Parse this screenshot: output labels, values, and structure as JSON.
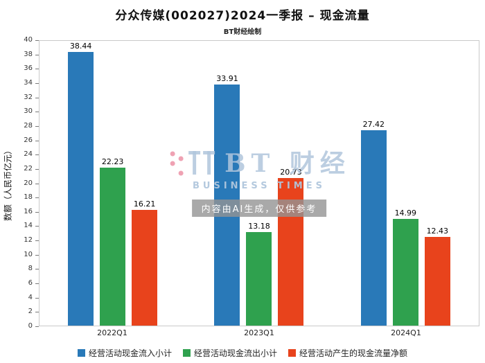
{
  "title": "分众传媒(002027)2024一季报 – 现金流量",
  "subtitle": "BT财经绘制",
  "chart_data": {
    "type": "bar",
    "categories": [
      "2022Q1",
      "2023Q1",
      "2024Q1"
    ],
    "series": [
      {
        "name": "经营活动现金流入小计",
        "color": "#2979b8",
        "values": [
          38.44,
          33.91,
          27.42
        ]
      },
      {
        "name": "经营活动现金流出小计",
        "color": "#2fa14e",
        "values": [
          22.23,
          13.18,
          14.99
        ]
      },
      {
        "name": "经营活动产生的现金流量净额",
        "color": "#e8431c",
        "values": [
          16.21,
          20.73,
          12.43
        ]
      }
    ],
    "title": "分众传媒(002027)2024一季报 – 现金流量",
    "xlabel": "",
    "ylabel": "数额（人民币亿元）",
    "ylim": [
      0,
      40
    ],
    "ytick_step": 2,
    "grid": false,
    "legend_position": "bottom"
  },
  "watermark": {
    "logo_text": "BT 财经",
    "logo_subtext": "BUSINESS TIMES",
    "disclaimer": "内容由AI生成，仅供参考"
  }
}
